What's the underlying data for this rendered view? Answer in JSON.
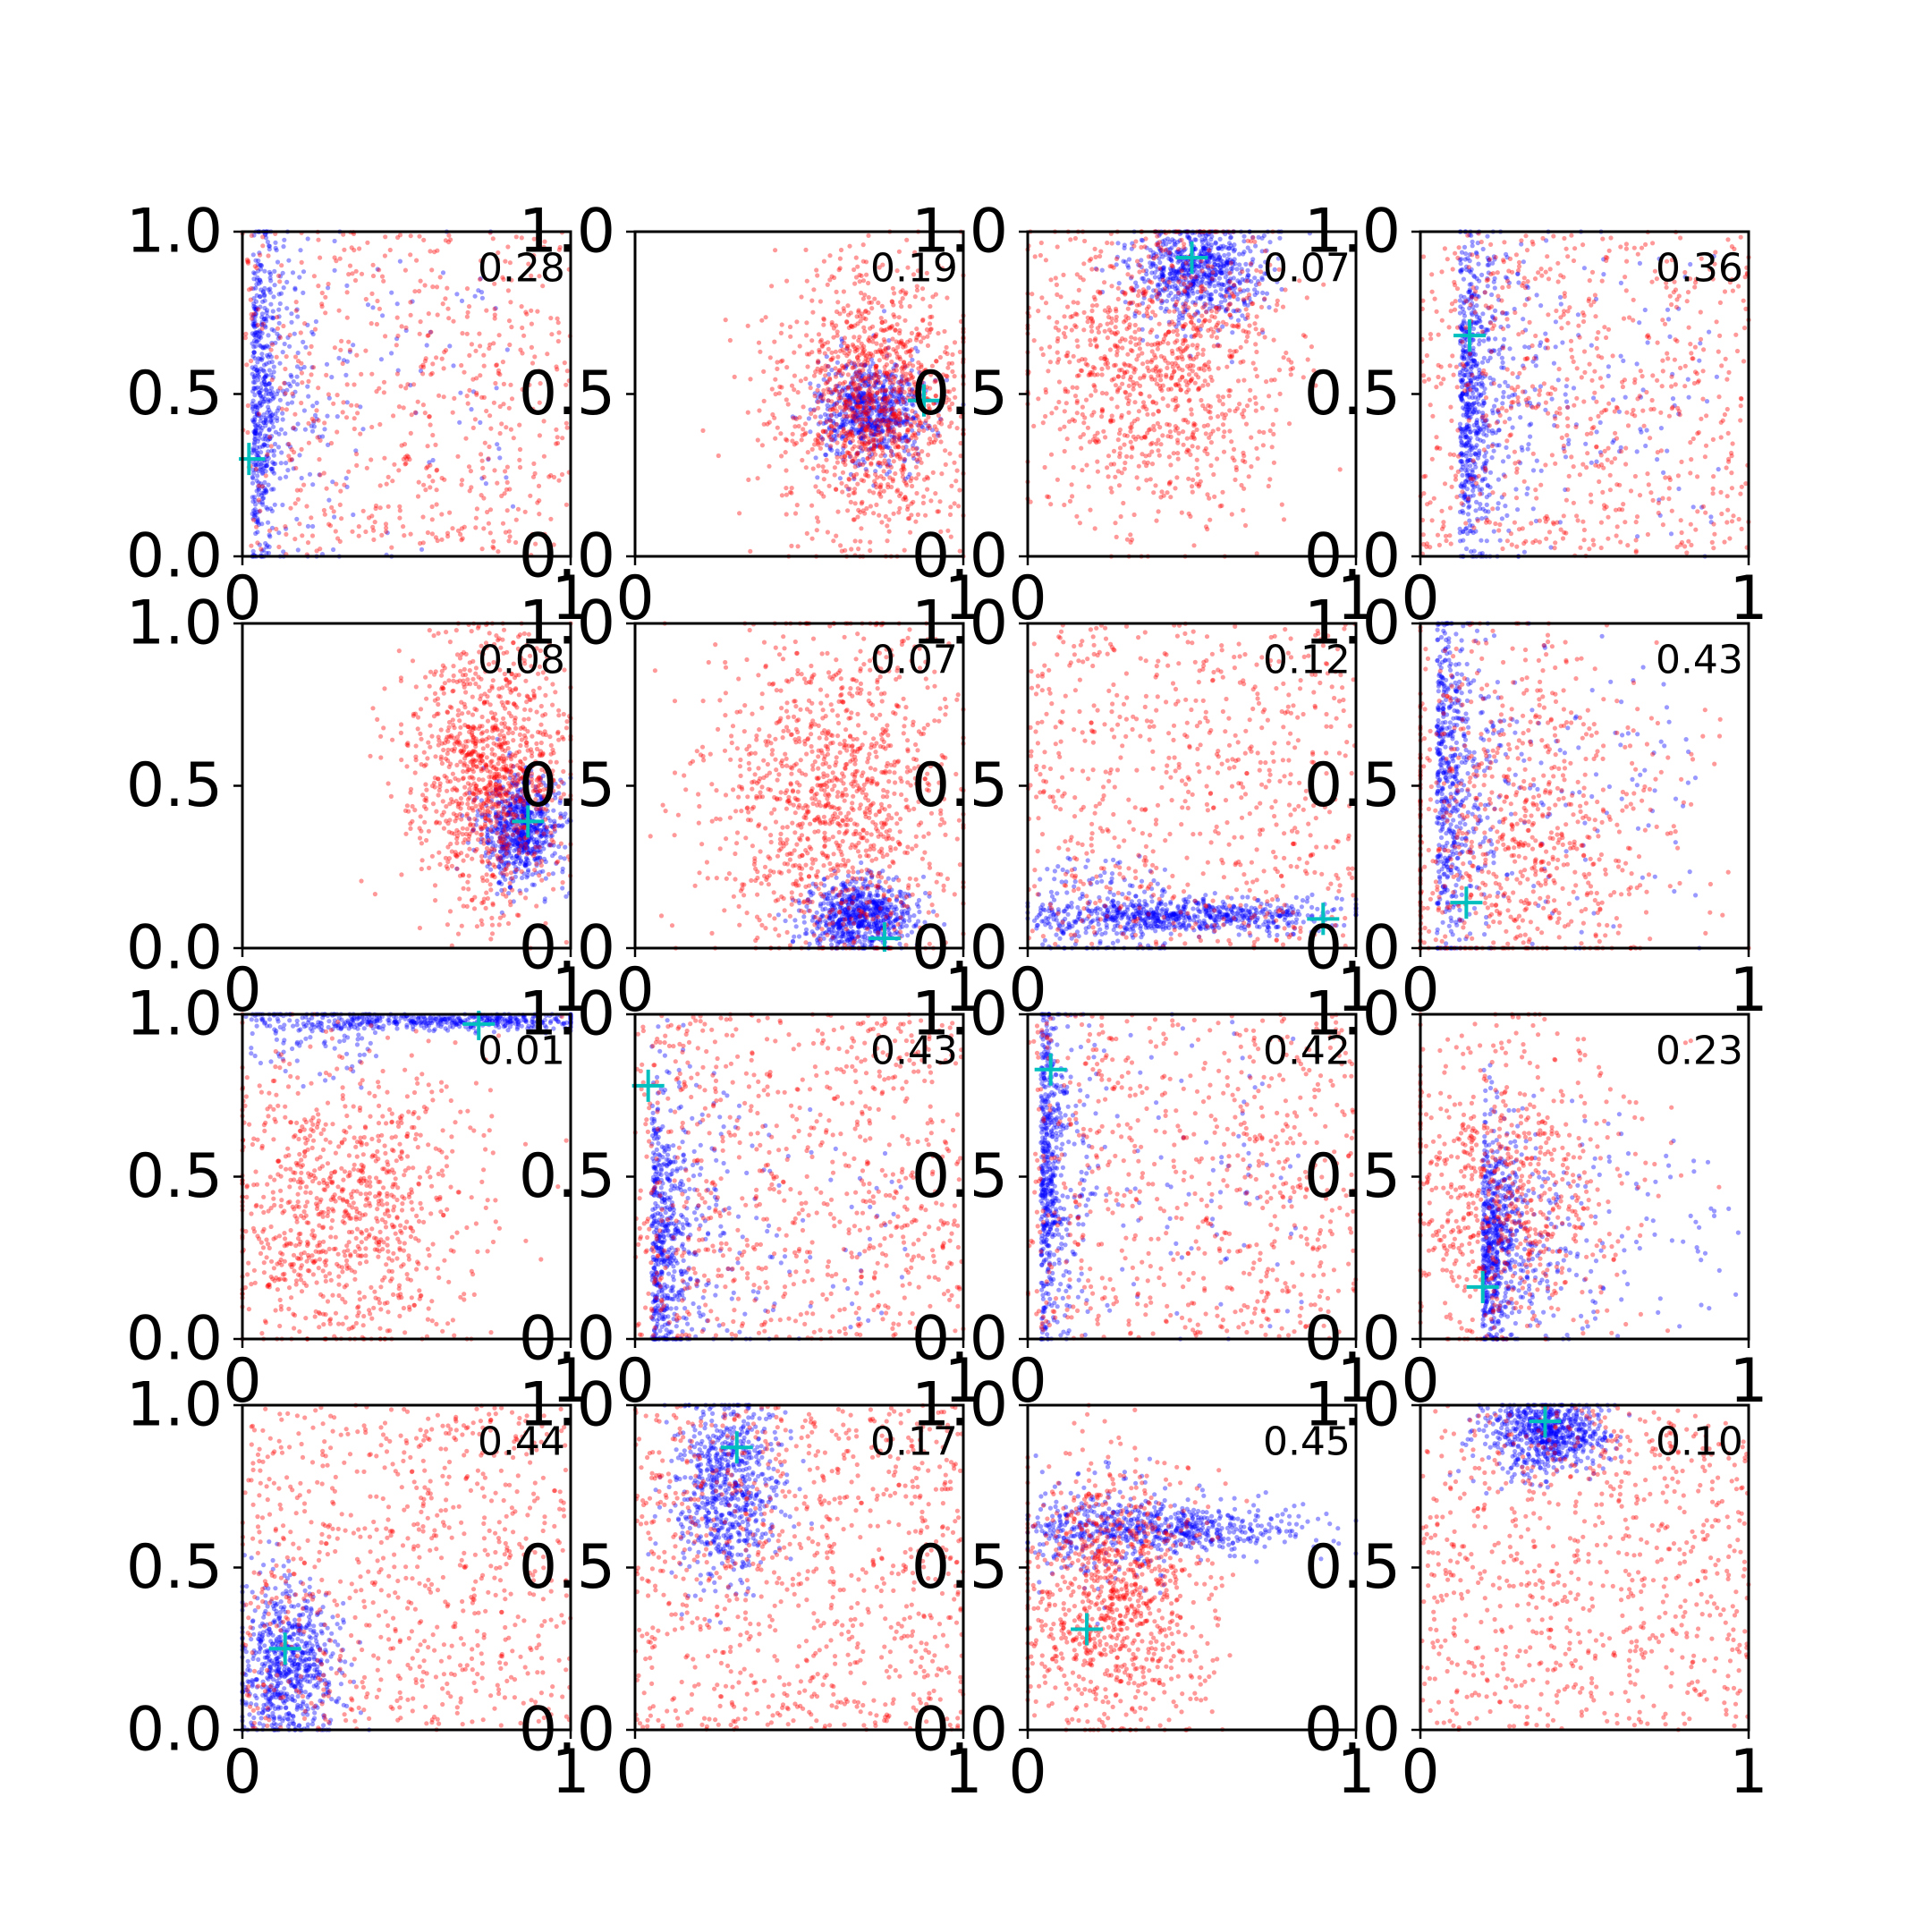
{
  "chart_data": {
    "type": "scatter",
    "grid": false,
    "layout": {
      "rows": 4,
      "cols": 4
    },
    "series_colors": {
      "red": "#ff0000",
      "blue": "#0000ff",
      "marker": "#00bfbf"
    },
    "xlim": [
      0,
      1
    ],
    "ylim": [
      0,
      1
    ],
    "x_ticks": [
      "0",
      "1"
    ],
    "y_ticks": [
      "0.0",
      "0.5",
      "1.0"
    ],
    "panels": [
      {
        "label": "0.28",
        "marker": [
          0.02,
          0.3
        ],
        "blue": {
          "type": "vband",
          "cx": 0.03,
          "cy": 0.5,
          "sx": 0.04,
          "sy": 0.3,
          "n": 700
        },
        "red": {
          "type": "uniform",
          "n": 600
        }
      },
      {
        "label": "0.19",
        "marker": [
          0.88,
          0.48
        ],
        "blue": {
          "type": "blob",
          "cx": 0.72,
          "cy": 0.45,
          "sx": 0.08,
          "sy": 0.08,
          "n": 700
        },
        "red": {
          "type": "blob",
          "cx": 0.72,
          "cy": 0.48,
          "sx": 0.15,
          "sy": 0.2,
          "n": 1200
        }
      },
      {
        "label": "0.07",
        "marker": [
          0.5,
          0.92
        ],
        "blue": {
          "type": "blob",
          "cx": 0.52,
          "cy": 0.88,
          "sx": 0.1,
          "sy": 0.08,
          "n": 700
        },
        "red": {
          "type": "blob",
          "cx": 0.4,
          "cy": 0.6,
          "sx": 0.2,
          "sy": 0.25,
          "n": 1100
        }
      },
      {
        "label": "0.36",
        "marker": [
          0.15,
          0.68
        ],
        "blue": {
          "type": "vband",
          "cx": 0.12,
          "cy": 0.5,
          "sx": 0.05,
          "sy": 0.28,
          "n": 800
        },
        "red": {
          "type": "uniform",
          "n": 700
        }
      },
      {
        "label": "0.08",
        "marker": [
          0.87,
          0.39
        ],
        "blue": {
          "type": "blob",
          "cx": 0.85,
          "cy": 0.37,
          "sx": 0.06,
          "sy": 0.08,
          "n": 700
        },
        "red": {
          "type": "blob",
          "cx": 0.75,
          "cy": 0.55,
          "sx": 0.12,
          "sy": 0.22,
          "n": 1100
        }
      },
      {
        "label": "0.07",
        "marker": [
          0.76,
          0.03
        ],
        "blue": {
          "type": "blob",
          "cx": 0.68,
          "cy": 0.1,
          "sx": 0.08,
          "sy": 0.06,
          "n": 700
        },
        "red": {
          "type": "blob",
          "cx": 0.6,
          "cy": 0.45,
          "sx": 0.18,
          "sy": 0.28,
          "n": 1200
        }
      },
      {
        "label": "0.12",
        "marker": [
          0.9,
          0.09
        ],
        "blue": {
          "type": "hband",
          "cx": 0.5,
          "cy": 0.1,
          "sx": 0.25,
          "sy": 0.025,
          "n": 800
        },
        "red": {
          "type": "uniform",
          "n": 700
        }
      },
      {
        "label": "0.43",
        "marker": [
          0.14,
          0.14
        ],
        "blue": {
          "type": "vband",
          "cx": 0.05,
          "cy": 0.5,
          "sx": 0.05,
          "sy": 0.3,
          "n": 700
        },
        "red": {
          "type": "blob",
          "cx": 0.3,
          "cy": 0.35,
          "sx": 0.25,
          "sy": 0.3,
          "n": 900
        }
      },
      {
        "label": "0.01",
        "marker": [
          0.72,
          0.97
        ],
        "blue": {
          "type": "hband",
          "cx": 0.65,
          "cy": 0.98,
          "sx": 0.25,
          "sy": 0.015,
          "n": 600
        },
        "red": {
          "type": "blob",
          "cx": 0.3,
          "cy": 0.4,
          "sx": 0.2,
          "sy": 0.25,
          "n": 1000
        }
      },
      {
        "label": "0.43",
        "marker": [
          0.04,
          0.78
        ],
        "blue": {
          "type": "vband",
          "cx": 0.05,
          "cy": 0.3,
          "sx": 0.05,
          "sy": 0.25,
          "n": 700
        },
        "red": {
          "type": "uniform",
          "n": 800
        }
      },
      {
        "label": "0.42",
        "marker": [
          0.07,
          0.83
        ],
        "blue": {
          "type": "vband",
          "cx": 0.04,
          "cy": 0.5,
          "sx": 0.03,
          "sy": 0.3,
          "n": 700
        },
        "red": {
          "type": "uniform",
          "n": 700
        }
      },
      {
        "label": "0.23",
        "marker": [
          0.19,
          0.16
        ],
        "blue": {
          "type": "vband",
          "cx": 0.19,
          "cy": 0.3,
          "sx": 0.05,
          "sy": 0.18,
          "n": 800
        },
        "red": {
          "type": "blob",
          "cx": 0.25,
          "cy": 0.45,
          "sx": 0.2,
          "sy": 0.25,
          "n": 800
        }
      },
      {
        "label": "0.44",
        "marker": [
          0.13,
          0.25
        ],
        "blue": {
          "type": "blob",
          "cx": 0.13,
          "cy": 0.2,
          "sx": 0.08,
          "sy": 0.12,
          "n": 700
        },
        "red": {
          "type": "uniform",
          "n": 800
        }
      },
      {
        "label": "0.17",
        "marker": [
          0.31,
          0.87
        ],
        "blue": {
          "type": "blob",
          "cx": 0.28,
          "cy": 0.75,
          "sx": 0.08,
          "sy": 0.15,
          "n": 700
        },
        "red": {
          "type": "uniform",
          "n": 900
        }
      },
      {
        "label": "0.45",
        "marker": [
          0.18,
          0.31
        ],
        "blue": {
          "type": "hband",
          "cx": 0.45,
          "cy": 0.62,
          "sx": 0.22,
          "sy": 0.04,
          "n": 700
        },
        "red": {
          "type": "blob",
          "cx": 0.25,
          "cy": 0.4,
          "sx": 0.15,
          "sy": 0.2,
          "n": 1000
        }
      },
      {
        "label": "0.10",
        "marker": [
          0.38,
          0.95
        ],
        "blue": {
          "type": "blob",
          "cx": 0.38,
          "cy": 0.92,
          "sx": 0.1,
          "sy": 0.06,
          "n": 700
        },
        "red": {
          "type": "uniform",
          "n": 800
        }
      }
    ]
  }
}
